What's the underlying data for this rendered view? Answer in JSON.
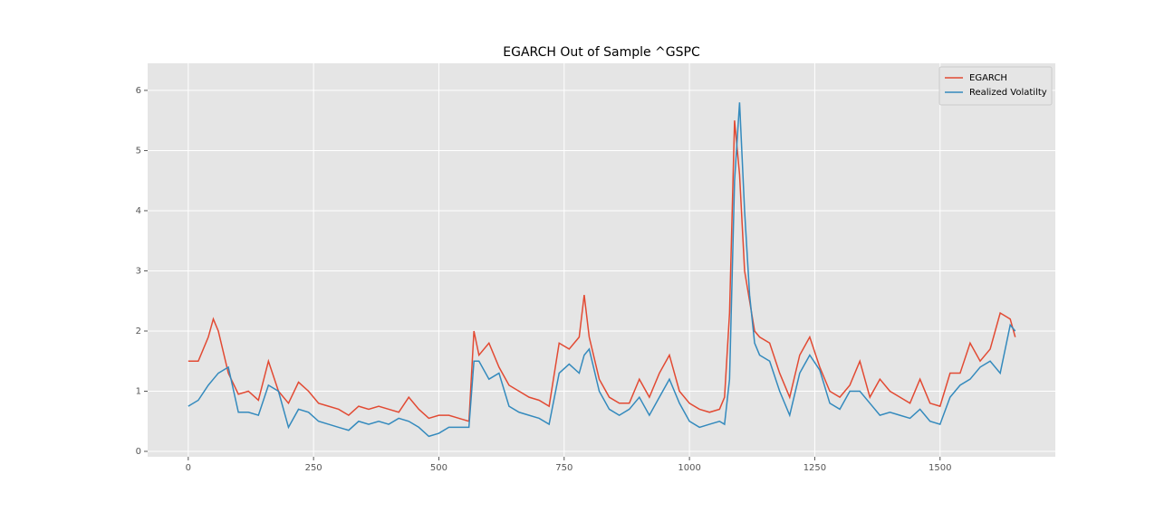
{
  "chart_data": {
    "type": "line",
    "title": "EGARCH Out of Sample ^GSPC",
    "x": [
      0,
      20,
      40,
      50,
      60,
      80,
      100,
      120,
      140,
      160,
      180,
      200,
      220,
      240,
      260,
      280,
      300,
      320,
      340,
      360,
      380,
      400,
      420,
      440,
      460,
      480,
      500,
      520,
      540,
      560,
      570,
      580,
      600,
      620,
      640,
      660,
      680,
      700,
      720,
      740,
      760,
      780,
      790,
      800,
      820,
      840,
      860,
      880,
      900,
      920,
      940,
      960,
      980,
      1000,
      1020,
      1040,
      1060,
      1070,
      1080,
      1090,
      1100,
      1110,
      1120,
      1130,
      1140,
      1160,
      1180,
      1200,
      1220,
      1240,
      1260,
      1280,
      1300,
      1320,
      1340,
      1360,
      1380,
      1400,
      1420,
      1440,
      1460,
      1480,
      1500,
      1520,
      1540,
      1560,
      1580,
      1600,
      1620,
      1640,
      1650
    ],
    "series": [
      {
        "name": "EGARCH",
        "color": "#E24A33",
        "values": [
          1.5,
          1.5,
          1.9,
          2.2,
          2.0,
          1.3,
          0.95,
          1.0,
          0.85,
          1.5,
          1.0,
          0.8,
          1.15,
          1.0,
          0.8,
          0.75,
          0.7,
          0.6,
          0.75,
          0.7,
          0.75,
          0.7,
          0.65,
          0.9,
          0.7,
          0.55,
          0.6,
          0.6,
          0.55,
          0.5,
          2.0,
          1.6,
          1.8,
          1.4,
          1.1,
          1.0,
          0.9,
          0.85,
          0.75,
          1.8,
          1.7,
          1.9,
          2.6,
          1.9,
          1.2,
          0.9,
          0.8,
          0.8,
          1.2,
          0.9,
          1.3,
          1.6,
          1.0,
          0.8,
          0.7,
          0.65,
          0.7,
          0.9,
          2.3,
          5.5,
          4.6,
          3.0,
          2.5,
          2.0,
          1.9,
          1.8,
          1.3,
          0.9,
          1.6,
          1.9,
          1.4,
          1.0,
          0.9,
          1.1,
          1.5,
          0.9,
          1.2,
          1.0,
          0.9,
          0.8,
          1.2,
          0.8,
          0.75,
          1.3,
          1.3,
          1.8,
          1.5,
          1.7,
          2.3,
          2.2,
          1.9
        ]
      },
      {
        "name": "Realized Volatilty",
        "color": "#348ABD",
        "values": [
          0.75,
          0.85,
          1.1,
          1.2,
          1.3,
          1.4,
          0.65,
          0.65,
          0.6,
          1.1,
          1.0,
          0.4,
          0.7,
          0.65,
          0.5,
          0.45,
          0.4,
          0.35,
          0.5,
          0.45,
          0.5,
          0.45,
          0.55,
          0.5,
          0.4,
          0.25,
          0.3,
          0.4,
          0.4,
          0.4,
          1.5,
          1.5,
          1.2,
          1.3,
          0.75,
          0.65,
          0.6,
          0.55,
          0.45,
          1.3,
          1.45,
          1.3,
          1.6,
          1.7,
          1.0,
          0.7,
          0.6,
          0.7,
          0.9,
          0.6,
          0.9,
          1.2,
          0.8,
          0.5,
          0.4,
          0.45,
          0.5,
          0.45,
          1.2,
          4.5,
          5.8,
          4.0,
          2.6,
          1.8,
          1.6,
          1.5,
          1.0,
          0.6,
          1.3,
          1.6,
          1.35,
          0.8,
          0.7,
          1.0,
          1.0,
          0.8,
          0.6,
          0.65,
          0.6,
          0.55,
          0.7,
          0.5,
          0.45,
          0.9,
          1.1,
          1.2,
          1.4,
          1.5,
          1.3,
          2.1,
          2.0
        ]
      }
    ],
    "xlim": [
      -81,
      1730
    ],
    "xticks": [
      0,
      250,
      500,
      750,
      1000,
      1250,
      1500
    ],
    "ylim": [
      -0.09,
      6.45
    ],
    "yticks": [
      0,
      1,
      2,
      3,
      4,
      5,
      6
    ],
    "grid": true,
    "legend": "upper right"
  }
}
